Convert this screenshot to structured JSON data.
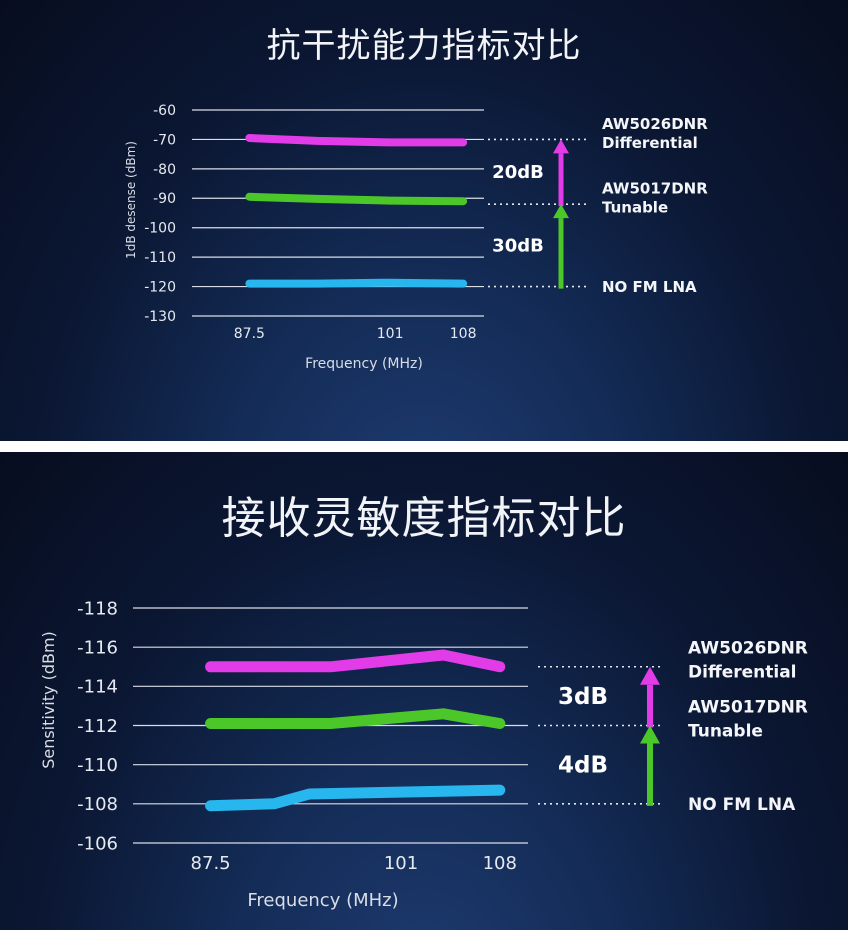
{
  "chart_data": [
    {
      "type": "line",
      "title": "抗干扰能力指标对比",
      "xlabel": "Frequency (MHz)",
      "ylabel": "1dB desense (dBm)",
      "x_ticks": [
        "87.5",
        "101",
        "108"
      ],
      "y_ticks": [
        "-60",
        "-70",
        "-80",
        "-90",
        "-100",
        "-110",
        "-120",
        "-130"
      ],
      "ylim": [
        -130,
        -60
      ],
      "xlim": [
        82,
        110
      ],
      "grid": true,
      "series": [
        {
          "name": "AW5026DNR Differential",
          "color": "#e23be8",
          "x": [
            87.5,
            94,
            101,
            108
          ],
          "y": [
            -69.5,
            -70.5,
            -71,
            -71
          ]
        },
        {
          "name": "AW5017DNR Tunable",
          "color": "#4cc72a",
          "x": [
            87.5,
            94,
            101,
            108
          ],
          "y": [
            -89.5,
            -90.2,
            -90.8,
            -91
          ]
        },
        {
          "name": "NO FM LNA",
          "color": "#27b7ee",
          "x": [
            87.5,
            94,
            101,
            108
          ],
          "y": [
            -119,
            -119,
            -118.7,
            -119
          ]
        }
      ],
      "legend": [
        {
          "line1": "AW5026DNR",
          "line2": "Differential",
          "ref_y": -70
        },
        {
          "line1": "AW5017DNR",
          "line2": "Tunable",
          "ref_y": -92
        },
        {
          "line1": "NO FM LNA",
          "line2": "",
          "ref_y": -120
        }
      ],
      "differences": [
        {
          "label": "20dB",
          "from": -92,
          "to": -70,
          "color": "#e23be8"
        },
        {
          "label": "30dB",
          "from": -120,
          "to": -92,
          "color": "#4cc72a"
        }
      ]
    },
    {
      "type": "line",
      "title": "接收灵敏度指标对比",
      "xlabel": "Frequency (MHz)",
      "ylabel": "Sensitivity (dBm)",
      "x_ticks": [
        "87.5",
        "101",
        "108"
      ],
      "y_ticks": [
        "-118",
        "-116",
        "-114",
        "-112",
        "-110",
        "-108",
        "-106"
      ],
      "ylim": [
        -118,
        -106
      ],
      "y_reversed": true,
      "xlim": [
        82,
        110
      ],
      "grid": true,
      "series": [
        {
          "name": "AW5026DNR Differential",
          "color": "#e23be8",
          "x": [
            87.5,
            96,
            104,
            108
          ],
          "y": [
            -115,
            -115,
            -115.6,
            -115
          ]
        },
        {
          "name": "AW5017DNR Tunable",
          "color": "#4cc72a",
          "x": [
            87.5,
            96,
            104,
            108
          ],
          "y": [
            -112.1,
            -112.1,
            -112.6,
            -112.1
          ]
        },
        {
          "name": "NO FM LNA",
          "color": "#27b7ee",
          "x": [
            87.5,
            92,
            94.5,
            108
          ],
          "y": [
            -107.9,
            -108,
            -108.5,
            -108.7
          ]
        }
      ],
      "legend": [
        {
          "line1": "AW5026DNR",
          "line2": "Differential",
          "ref_y": -115
        },
        {
          "line1": "AW5017DNR",
          "line2": "Tunable",
          "ref_y": -112
        },
        {
          "line1": "NO FM LNA",
          "line2": "",
          "ref_y": -108
        }
      ],
      "differences": [
        {
          "label": "3dB",
          "from": -112,
          "to": -115,
          "color": "#e23be8"
        },
        {
          "label": "4dB",
          "from": -108,
          "to": -112,
          "color": "#4cc72a"
        }
      ]
    }
  ]
}
